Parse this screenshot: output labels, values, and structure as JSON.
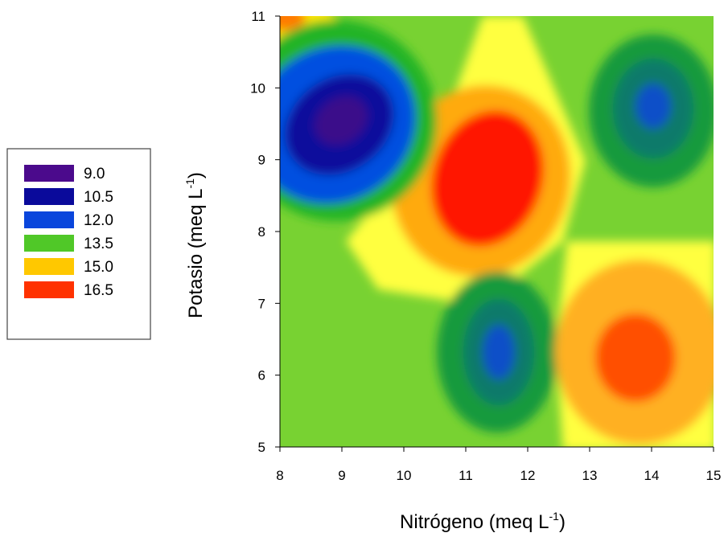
{
  "chart_data": {
    "type": "heatmap",
    "title": "",
    "xlabel": {
      "main": "Nitrógeno (meq L",
      "sup": "-1",
      "close": ")"
    },
    "ylabel": {
      "main": "Potasio (meq L",
      "sup": "-1",
      "close": ")"
    },
    "xlim": [
      8,
      15
    ],
    "ylim": [
      5,
      11
    ],
    "x_ticks": [
      "8",
      "9",
      "10",
      "11",
      "12",
      "13",
      "14",
      "15"
    ],
    "y_ticks": [
      "5",
      "6",
      "7",
      "8",
      "9",
      "10",
      "11"
    ],
    "legend": [
      {
        "label": "9.0",
        "color": "#4b0a8c"
      },
      {
        "label": "10.5",
        "color": "#0a0a9b"
      },
      {
        "label": "12.0",
        "color": "#0a46dc"
      },
      {
        "label": "13.5",
        "color": "#50c828"
      },
      {
        "label": "15.0",
        "color": "#ffc800"
      },
      {
        "label": "16.5",
        "color": "#ff3200"
      }
    ],
    "legend_position": "left",
    "grid": false,
    "features": [
      {
        "x": 8.9,
        "y": 9.5,
        "value": 9.0
      },
      {
        "x": 11.4,
        "y": 8.5,
        "value": 16.6
      },
      {
        "x": 14.0,
        "y": 9.7,
        "value": 11.6
      },
      {
        "x": 11.6,
        "y": 6.4,
        "value": 11.8
      },
      {
        "x": 13.7,
        "y": 6.2,
        "value": 16.2
      },
      {
        "x": 8.0,
        "y": 11.0,
        "value": 16.0
      }
    ]
  }
}
